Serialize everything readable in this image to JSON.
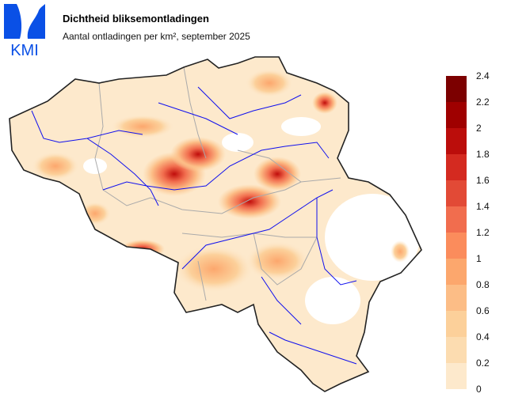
{
  "logo": {
    "text": "KMI",
    "color": "#0a50e6"
  },
  "header": {
    "title": "Dichtheid bliksemontladingen",
    "subtitle": "Aantal ontladingen per km², september 2025"
  },
  "map": {
    "region": "Belgium",
    "colors": {
      "border": "#222222",
      "provinces": "#aaaaaa",
      "rivers": "#1010ee"
    }
  },
  "legend": {
    "ticks": [
      "0",
      "0.2",
      "0.4",
      "0.6",
      "0.8",
      "1",
      "1.2",
      "1.4",
      "1.6",
      "1.8",
      "2",
      "2.2",
      "2.4"
    ],
    "colors": [
      "#fde9cc",
      "#fcdcb0",
      "#fcd09a",
      "#fcbd86",
      "#fca76d",
      "#fb8c5c",
      "#f16d4e",
      "#e24a36",
      "#d42a20",
      "#bb0d0b",
      "#9f0000",
      "#7c0000"
    ]
  }
}
